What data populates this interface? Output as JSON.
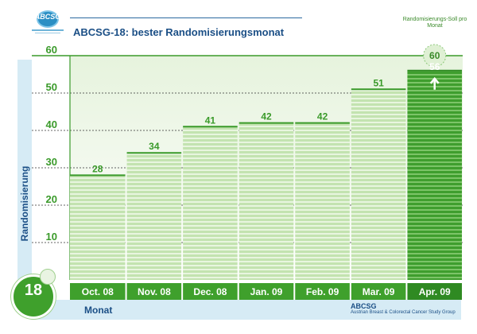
{
  "logo": {
    "text": "ABCSG"
  },
  "target": {
    "label": "Randomisierungs-Soll pro Monat",
    "value": 60
  },
  "badge": {
    "number": "18"
  },
  "footer": {
    "name": "ABCSG",
    "subtitle": "Austrian Breast & Colorectal Cancer Study Group"
  },
  "colors": {
    "bar_light": "#c3e3b0",
    "bar_stripe": "#ffffff",
    "bar_highlight": "#3f9e2e",
    "cat_band": "#3fa02c",
    "title": "#1b4f86",
    "tick": "#3a9a2a"
  },
  "chart_data": {
    "type": "bar",
    "title": "ABCSG-18: bester Randomisierungsmonat",
    "xlabel": "Monat",
    "ylabel": "Randomisierung",
    "categories": [
      "Oct. 08",
      "Nov. 08",
      "Dec. 08",
      "Jan. 09",
      "Feb. 09",
      "Mar. 09",
      "Apr. 09"
    ],
    "values": [
      28,
      34,
      41,
      42,
      42,
      51,
      56
    ],
    "highlight_index": 6,
    "ylim": [
      0,
      60
    ],
    "yticks": [
      10,
      20,
      30,
      40,
      50,
      60
    ],
    "grid": true
  }
}
